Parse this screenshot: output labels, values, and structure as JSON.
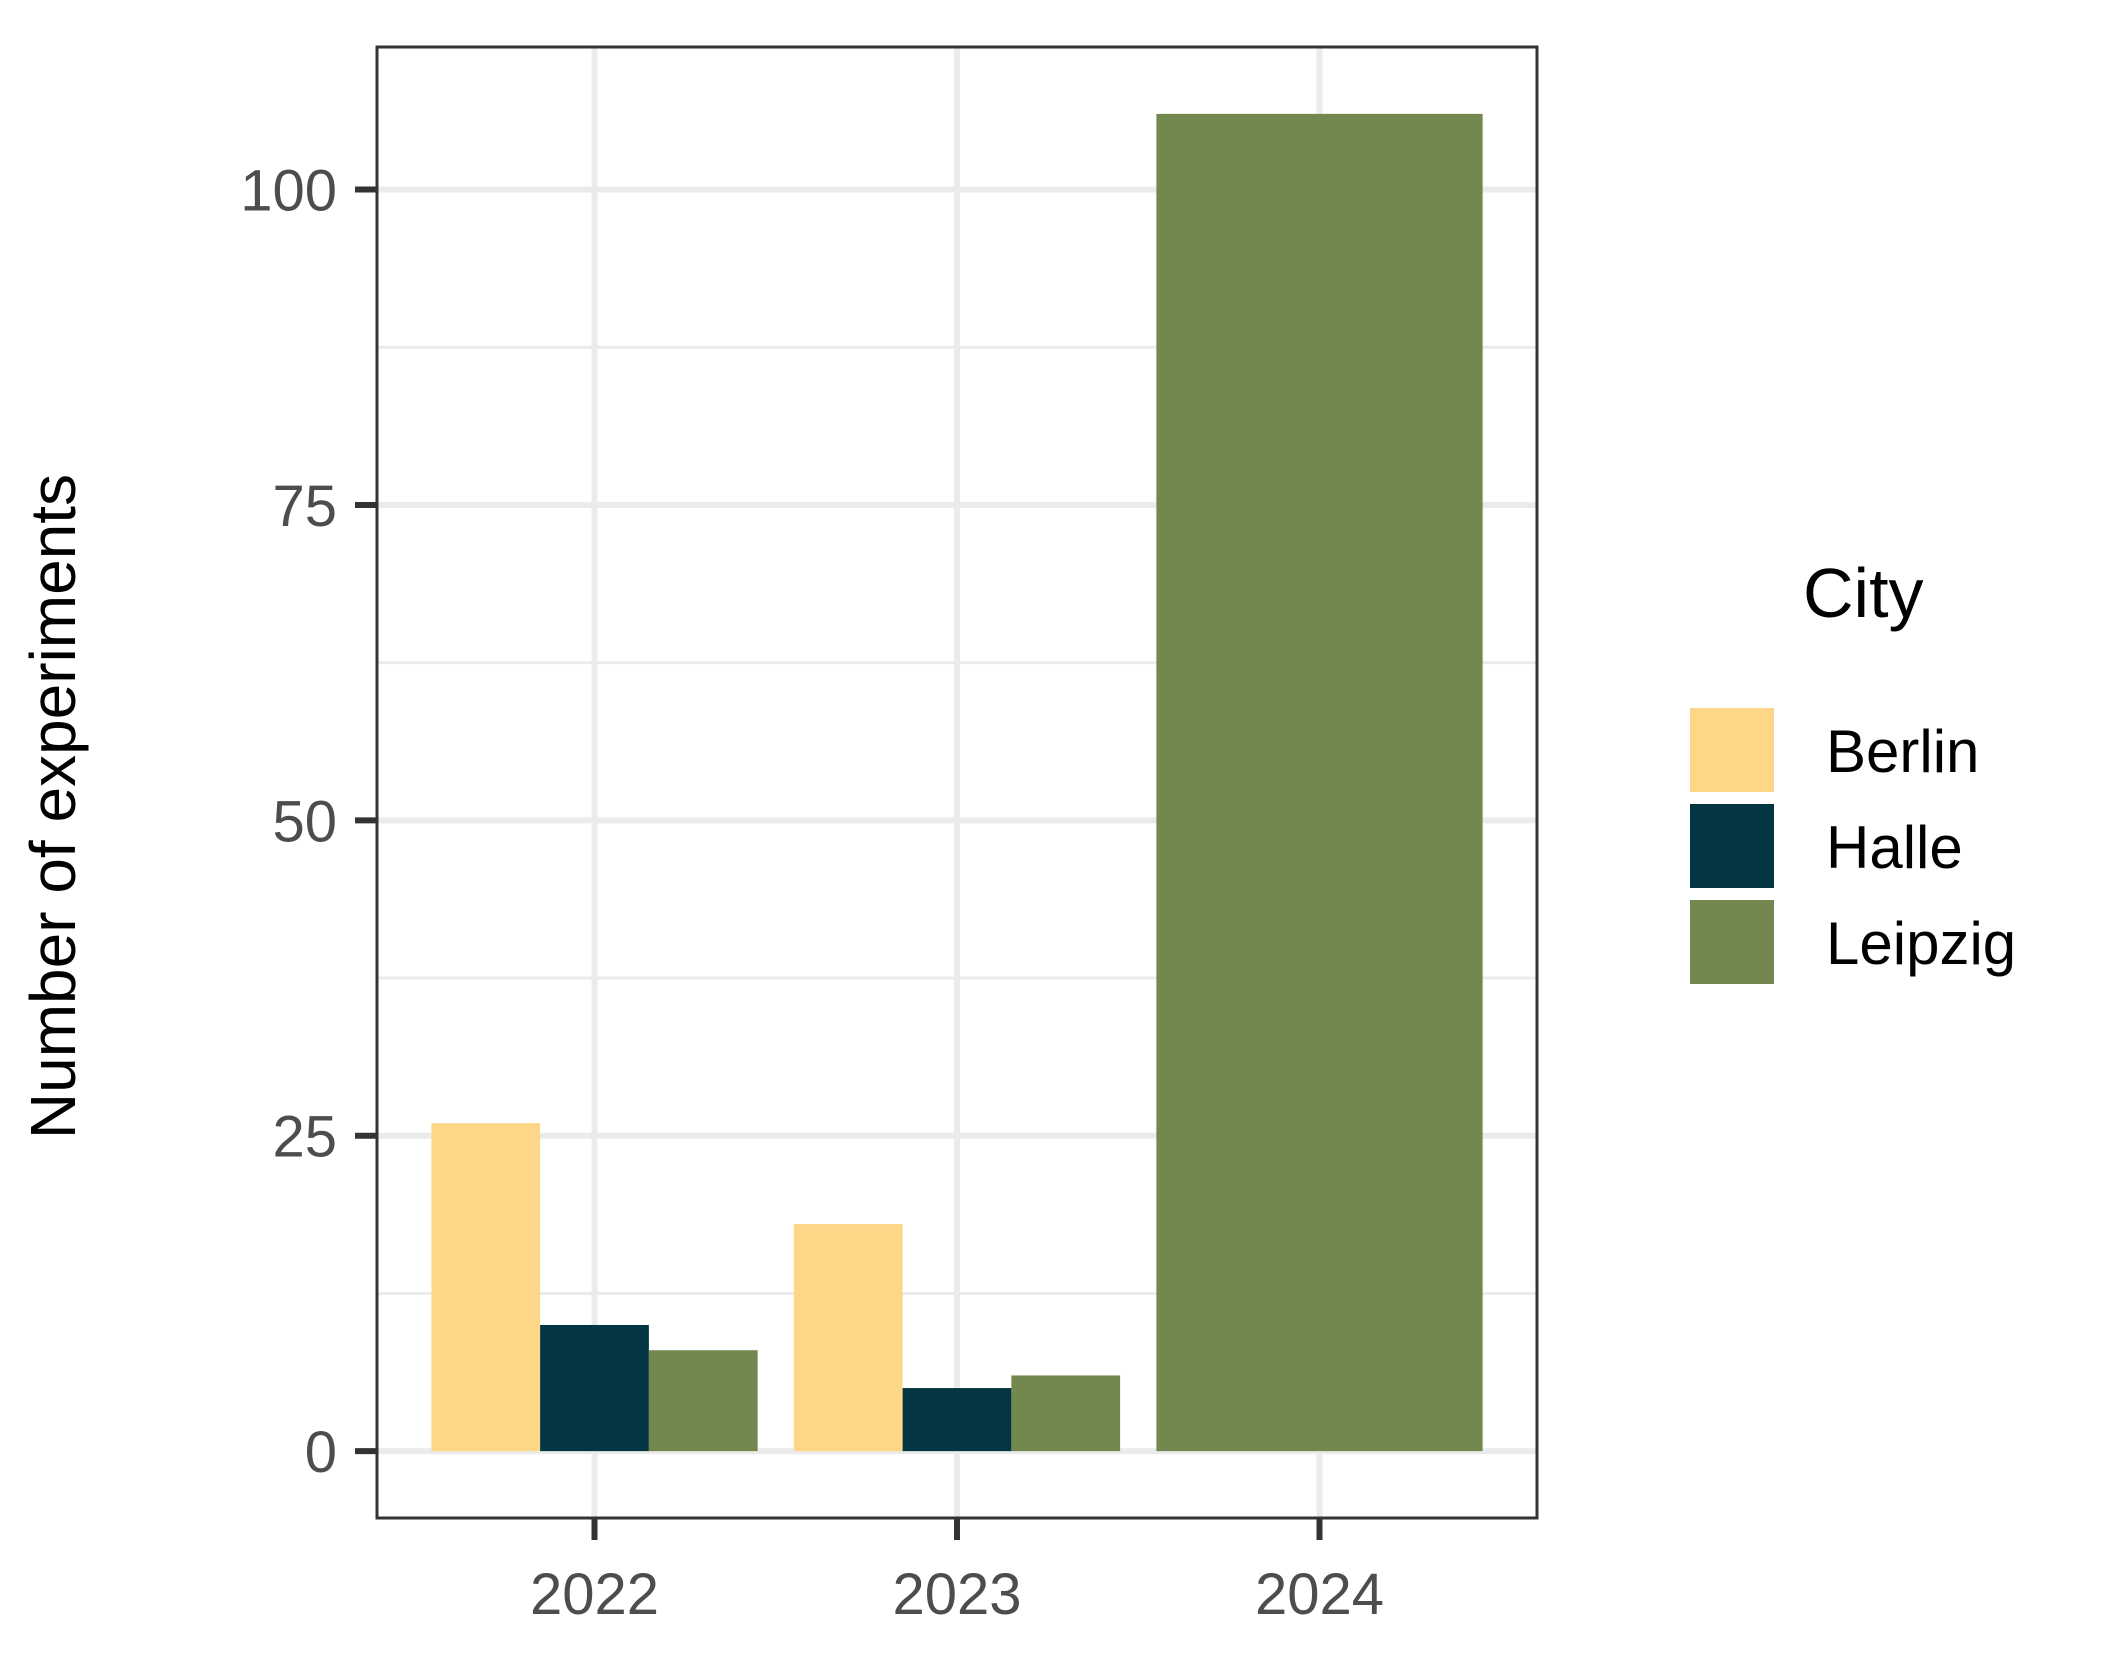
{
  "chart_data": {
    "type": "bar",
    "categories": [
      "2022",
      "2023",
      "2024"
    ],
    "series": [
      {
        "name": "Berlin",
        "values": [
          26,
          18,
          0
        ],
        "color": "#FDD688"
      },
      {
        "name": "Halle",
        "values": [
          10,
          5,
          0
        ],
        "color": "#033642"
      },
      {
        "name": "Leipzig",
        "values": [
          8,
          6,
          106
        ],
        "color": "#73884F"
      }
    ],
    "title": "",
    "xlabel": "",
    "ylabel": "Number of experiments",
    "ylim": [
      -5.3,
      111.3
    ],
    "yticks": [
      0,
      25,
      50,
      75,
      100
    ],
    "grid": true,
    "legend": {
      "title": "City",
      "placement": "right"
    }
  }
}
